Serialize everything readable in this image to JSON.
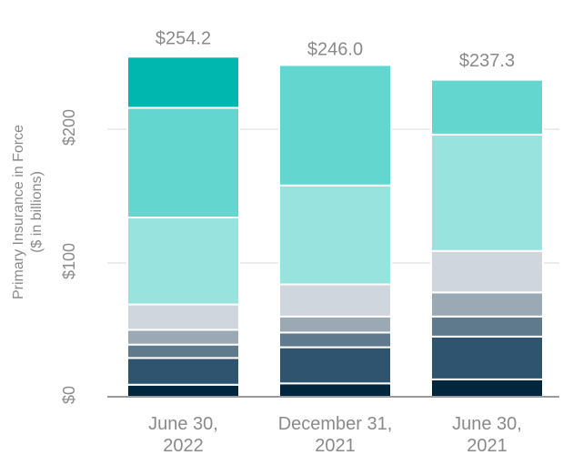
{
  "chart_data": {
    "type": "stacked-bar",
    "categories": [
      {
        "line1": "June 30,",
        "line2": "2022"
      },
      {
        "line1": "December 31,",
        "line2": "2021"
      },
      {
        "line1": "June 30,",
        "line2": "2021"
      }
    ],
    "totals": [
      "$254.2",
      "$246.0",
      "$237.3"
    ],
    "total_values": [
      254.2,
      246.0,
      237.3
    ],
    "series": [
      {
        "name": "segment-1",
        "color": "#00263e",
        "values": [
          9,
          10,
          13
        ]
      },
      {
        "name": "segment-2",
        "color": "#2f5470",
        "values": [
          20,
          27,
          32
        ]
      },
      {
        "name": "segment-3",
        "color": "#5f7a8c",
        "values": [
          10,
          11,
          15
        ]
      },
      {
        "name": "segment-4",
        "color": "#9aa9b4",
        "values": [
          11,
          12,
          18
        ]
      },
      {
        "name": "segment-5",
        "color": "#cfd6dd",
        "values": [
          19,
          24,
          31
        ]
      },
      {
        "name": "segment-6",
        "color": "#99e3df",
        "values": [
          65,
          74,
          87
        ]
      },
      {
        "name": "segment-7",
        "color": "#64d6d0",
        "values": [
          82,
          90,
          41
        ]
      },
      {
        "name": "segment-8",
        "color": "#00b7b0",
        "values": [
          38.2,
          0,
          0
        ]
      }
    ],
    "ylabel_line1": "Primary Insurance in Force",
    "ylabel_line2": "($ in billions)",
    "y_ticks": [
      {
        "value": 0,
        "label": "$0"
      },
      {
        "value": 100,
        "label": "$100"
      },
      {
        "value": 200,
        "label": "$200"
      }
    ],
    "ylim": [
      0,
      290
    ]
  }
}
